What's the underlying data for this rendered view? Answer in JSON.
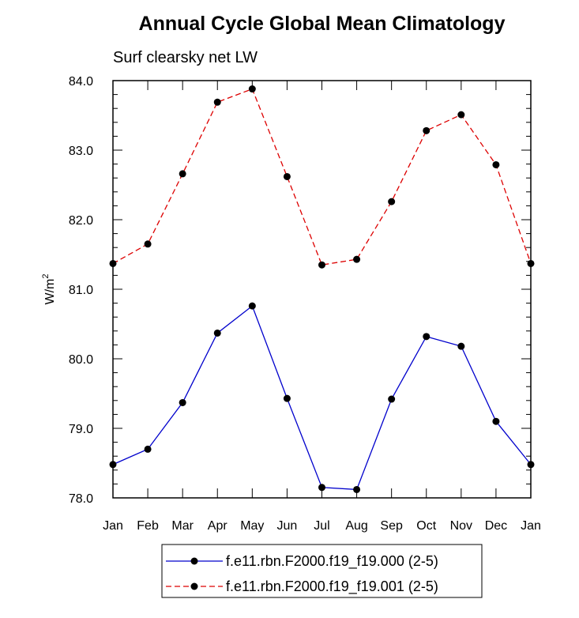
{
  "chart_data": {
    "type": "line",
    "title": "Annual Cycle Global Mean Climatology",
    "subtitle": "Surf clearsky net LW",
    "ylabel": "W/m",
    "ylabel_sup": "2",
    "xlabel": "",
    "ylim": [
      78.0,
      84.0
    ],
    "yticks": [
      "78.0",
      "79.0",
      "80.0",
      "81.0",
      "82.0",
      "83.0",
      "84.0"
    ],
    "categories": [
      "Jan",
      "Feb",
      "Mar",
      "Apr",
      "May",
      "Jun",
      "Jul",
      "Aug",
      "Sep",
      "Oct",
      "Nov",
      "Dec",
      "Jan"
    ],
    "series": [
      {
        "name": "f.e11.rbn.F2000.f19_f19.000 (2-5)",
        "color": "#0000cc",
        "dash": "solid",
        "values": [
          78.48,
          78.7,
          79.37,
          80.37,
          80.76,
          79.43,
          78.15,
          78.12,
          79.42,
          80.32,
          80.18,
          79.1,
          78.48
        ]
      },
      {
        "name": "f.e11.rbn.F2000.f19_f19.001 (2-5)",
        "color": "#dd0000",
        "dash": "dashed",
        "values": [
          81.37,
          81.65,
          82.66,
          83.69,
          83.88,
          82.62,
          81.35,
          81.43,
          82.26,
          83.28,
          83.51,
          82.79,
          81.37
        ]
      }
    ],
    "legend_position": "bottom-center"
  }
}
